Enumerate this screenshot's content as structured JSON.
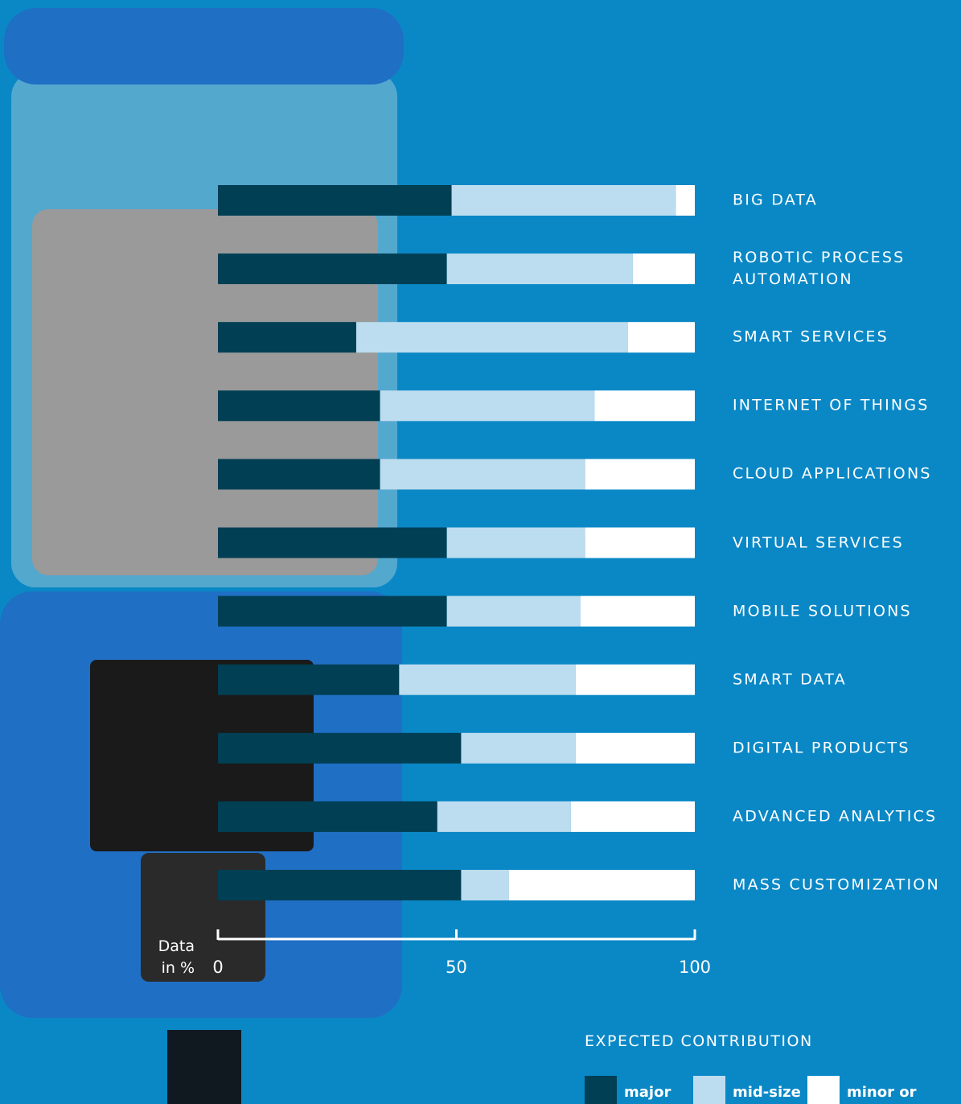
{
  "chart_data": {
    "type": "stacked-bar-horizontal",
    "xlabel": "Data in %",
    "xlim": [
      0,
      100
    ],
    "xticks": [
      0,
      50,
      100
    ],
    "legend_title": "EXPECTED CONTRIBUTION",
    "categories": [
      "BIG DATA",
      "ROBOTIC PROCESS AUTOMATION",
      "SMART SERVICES",
      "INTERNET OF THINGS",
      "CLOUD APPLICATIONS",
      "VIRTUAL SERVICES",
      "MOBILE SOLUTIONS",
      "SMART DATA",
      "DIGITAL PRODUCTS",
      "ADVANCED ANALYTICS",
      "MASS CUSTOMIZATION"
    ],
    "series": [
      {
        "name": "major",
        "color": "#013f54",
        "values": [
          49,
          48,
          29,
          34,
          34,
          48,
          48,
          38,
          51,
          46,
          51
        ]
      },
      {
        "name": "mid-size",
        "color": "#bcdcef",
        "values": [
          47,
          39,
          57,
          45,
          43,
          29,
          28,
          37,
          24,
          28,
          10
        ]
      },
      {
        "name": "minor or none",
        "color": "#ffffff",
        "values": [
          4,
          13,
          14,
          21,
          23,
          23,
          24,
          25,
          25,
          26,
          39
        ]
      }
    ]
  }
}
